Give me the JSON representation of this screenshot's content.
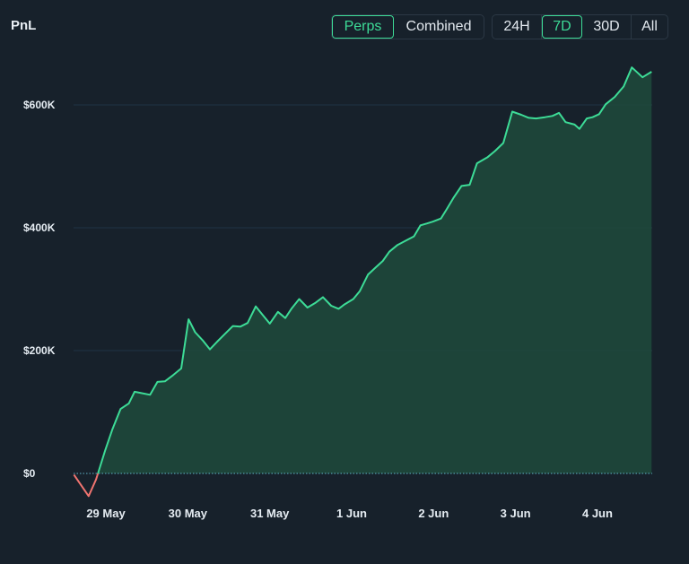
{
  "header": {
    "title": "PnL",
    "view_toggle": [
      {
        "label": "Perps",
        "active": true
      },
      {
        "label": "Combined",
        "active": false
      }
    ],
    "range_toggle": [
      {
        "label": "24H",
        "active": false
      },
      {
        "label": "7D",
        "active": true
      },
      {
        "label": "30D",
        "active": false
      },
      {
        "label": "All",
        "active": false
      }
    ]
  },
  "colors": {
    "background": "#17212b",
    "positive_line": "#3ddc97",
    "negative_line": "#f07470",
    "area_fill": "#1f4a3c",
    "grid": "#1f3344",
    "zero_line": "#5fb3c8"
  },
  "chart_data": {
    "type": "area",
    "title": "PnL",
    "xlabel": "",
    "ylabel": "",
    "x_tick_labels": [
      "29 May",
      "30 May",
      "31 May",
      "1 Jun",
      "2 Jun",
      "3 Jun",
      "4 Jun"
    ],
    "y_tick_labels": [
      "$0",
      "$200K",
      "$400K",
      "$600K"
    ],
    "y_ticks": [
      0,
      200000,
      400000,
      600000
    ],
    "ylim": [
      -50000,
      680000
    ],
    "xlim": [
      -0.39,
      6.66
    ],
    "grid": true,
    "x_unit": "days from 29 May",
    "series": [
      {
        "name": "PnL",
        "x": [
          -0.39,
          -0.21,
          -0.12,
          -0.01,
          0.08,
          0.18,
          0.28,
          0.35,
          0.54,
          0.63,
          0.72,
          0.82,
          0.92,
          1.01,
          1.09,
          1.18,
          1.27,
          1.37,
          1.46,
          1.55,
          1.64,
          1.73,
          1.83,
          1.92,
          2.0,
          2.1,
          2.19,
          2.27,
          2.36,
          2.46,
          2.56,
          2.65,
          2.75,
          2.84,
          2.91,
          3.02,
          3.1,
          3.2,
          3.29,
          3.38,
          3.46,
          3.56,
          3.66,
          3.76,
          3.84,
          3.92,
          3.99,
          4.09,
          4.16,
          4.24,
          4.34,
          4.44,
          4.53,
          4.66,
          4.75,
          4.85,
          4.96,
          5.07,
          5.16,
          5.25,
          5.36,
          5.45,
          5.53,
          5.61,
          5.72,
          5.78,
          5.87,
          5.94,
          6.02,
          6.1,
          6.21,
          6.32,
          6.42,
          6.55,
          6.66
        ],
        "values": [
          -2000,
          -37000,
          -10000,
          37000,
          72000,
          105000,
          114000,
          133000,
          128000,
          149000,
          150000,
          160000,
          171000,
          251000,
          230000,
          217000,
          202000,
          216000,
          228000,
          240000,
          239000,
          245000,
          272000,
          257000,
          244000,
          263000,
          253000,
          269000,
          284000,
          270000,
          278000,
          287000,
          273000,
          268000,
          275000,
          284000,
          297000,
          324000,
          335000,
          346000,
          361000,
          372000,
          379000,
          386000,
          404000,
          407000,
          410000,
          415000,
          430000,
          448000,
          468000,
          470000,
          505000,
          515000,
          525000,
          538000,
          589000,
          584000,
          579000,
          578000,
          580000,
          582000,
          587000,
          572000,
          568000,
          561000,
          578000,
          580000,
          585000,
          601000,
          613000,
          630000,
          661000,
          645000,
          654000
        ]
      }
    ]
  }
}
